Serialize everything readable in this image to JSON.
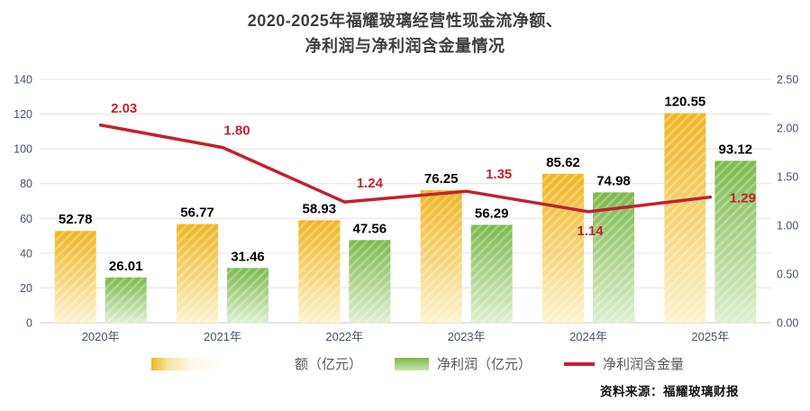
{
  "title": {
    "line1": "2020-2025年福耀玻璃经营性现金流净额、",
    "line2": "净利润与净利润含金量情况"
  },
  "legend": [
    {
      "label": "额（亿元）",
      "swatch": "yellow-gradient-bar"
    },
    {
      "label": "净利润（亿元）",
      "swatch": "green-bar"
    },
    {
      "label": "净利润含金量",
      "swatch": "red-line"
    }
  ],
  "source": "资料来源：福耀玻璃财报",
  "colors": {
    "bar1_top": "#EFB522",
    "bar1_bottom": "#FCF3CE",
    "bar2_top": "#7BBA4C",
    "bar2_bottom": "#DFEFD0",
    "line": "#C2222E",
    "grid": "#E3E3E3",
    "baseline": "#C9C9C9",
    "axis_text": "#44546A",
    "bar_label": "#000000",
    "title_text": "#3f3f3f"
  },
  "chart_data": {
    "type": "bar+line",
    "title": "2020-2025年福耀玻璃经营性现金流净额、净利润与净利润含金量情况",
    "categories": [
      "2020年",
      "2021年",
      "2022年",
      "2023年",
      "2024年",
      "2025年"
    ],
    "series": [
      {
        "name": "经营性现金流净额（亿元）",
        "type": "bar",
        "axis": "left",
        "values": [
          52.78,
          56.77,
          58.93,
          76.25,
          85.62,
          120.55
        ]
      },
      {
        "name": "净利润（亿元）",
        "type": "bar",
        "axis": "left",
        "values": [
          26.01,
          31.46,
          47.56,
          56.29,
          74.98,
          93.12
        ]
      },
      {
        "name": "净利润含金量",
        "type": "line",
        "axis": "right",
        "values": [
          2.03,
          1.8,
          1.24,
          1.35,
          1.14,
          1.29
        ]
      }
    ],
    "left_axis": {
      "min": 0,
      "max": 140,
      "step": 20,
      "ticks": [
        "0",
        "20",
        "40",
        "60",
        "80",
        "100",
        "120",
        "140"
      ]
    },
    "right_axis": {
      "min": 0,
      "max": 2.5,
      "step": 0.5,
      "ticks": [
        "0.00",
        "0.50",
        "1.00",
        "1.50",
        "2.00",
        "2.50"
      ]
    },
    "grid": true,
    "legend_position": "bottom"
  }
}
